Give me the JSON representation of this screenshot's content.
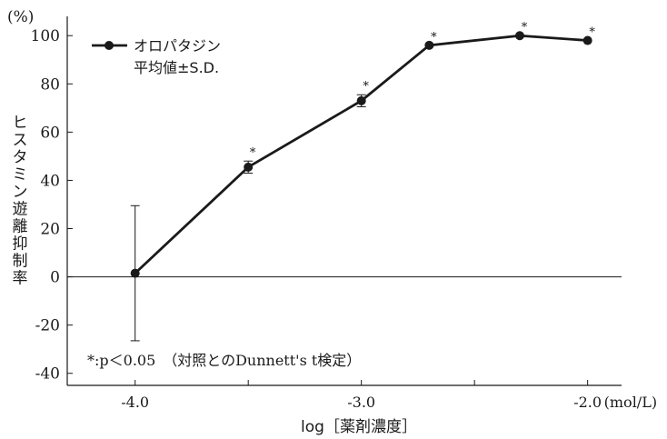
{
  "chart_data": {
    "type": "line",
    "y_unit_label": "(%)",
    "ylabel": "ヒスタミン遊離抑制率",
    "xlabel": "log［薬剤濃度］",
    "x_unit_label": "(mol/L)",
    "xlim": [
      -4.3,
      -1.85
    ],
    "ylim": [
      -45,
      108
    ],
    "yticks": [
      100,
      80,
      60,
      40,
      20,
      0,
      -20,
      -40
    ],
    "y_tick_labels": [
      "100",
      "80",
      "60",
      "40",
      "20",
      "0",
      "-20",
      "-40"
    ],
    "xticks_major": [
      -4.0,
      -3.0,
      -2.0
    ],
    "x_tick_labels": [
      "-4.0",
      "-3.0",
      "-2.0"
    ],
    "xticks_minor": [
      -3.5,
      -2.5
    ],
    "legend": {
      "placement": "top-left",
      "series_label": "オロパタジン",
      "note": "平均値±S.D."
    },
    "series": [
      {
        "name": "オロパタジン",
        "color": "#1a1a1a",
        "points": [
          {
            "x": -4.0,
            "y": 1.5,
            "sd": 28,
            "sig": false
          },
          {
            "x": -3.5,
            "y": 45.5,
            "sd": 2.5,
            "sig": true
          },
          {
            "x": -3.0,
            "y": 73,
            "sd": 2.5,
            "sig": true
          },
          {
            "x": -2.7,
            "y": 96,
            "sd": 0,
            "sig": true
          },
          {
            "x": -2.3,
            "y": 100,
            "sd": 0,
            "sig": true
          },
          {
            "x": -2.0,
            "y": 98,
            "sd": 0,
            "sig": true
          }
        ]
      }
    ],
    "significance_mark": "*",
    "footnote": "*:p＜0.05　（対照とのDunnett's t検定）"
  }
}
